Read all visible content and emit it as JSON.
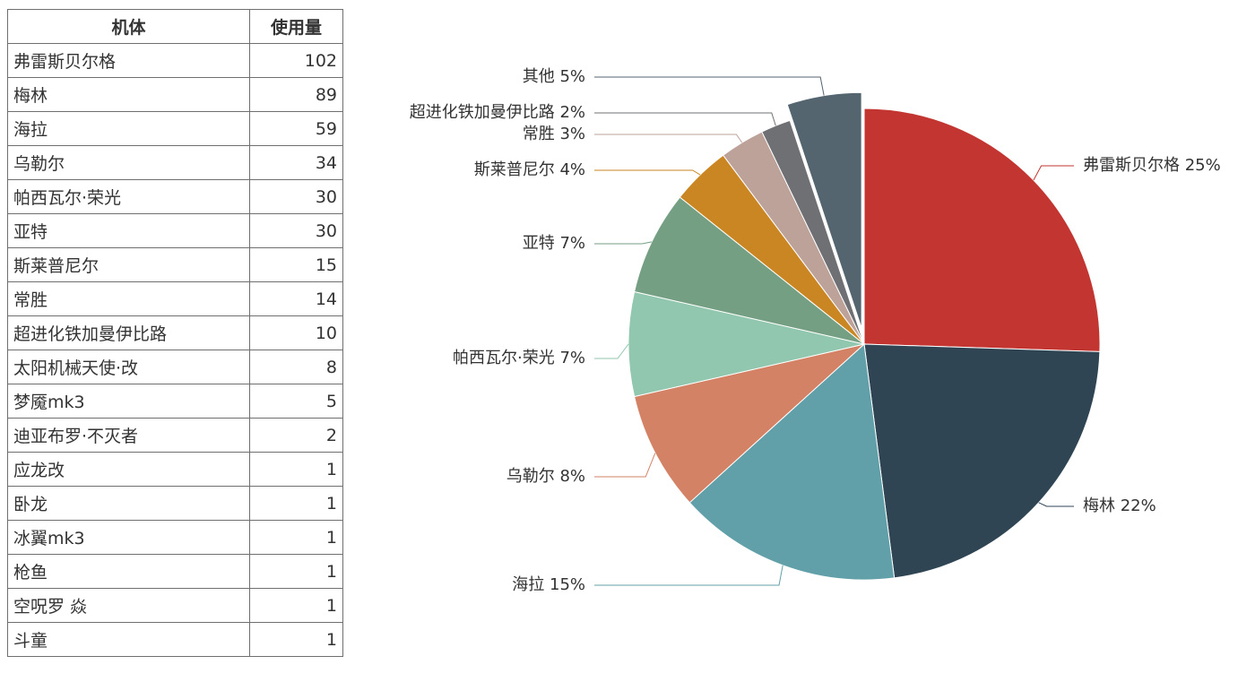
{
  "table": {
    "headers": [
      "机体",
      "使用量"
    ],
    "rows": [
      [
        "弗雷斯贝尔格",
        "102"
      ],
      [
        "梅林",
        "89"
      ],
      [
        "海拉",
        "59"
      ],
      [
        "乌勒尔",
        "34"
      ],
      [
        "帕西瓦尔·荣光",
        "30"
      ],
      [
        "亚特",
        "30"
      ],
      [
        "斯莱普尼尔",
        "15"
      ],
      [
        "常胜",
        "14"
      ],
      [
        "超进化铁加曼伊比路",
        "10"
      ],
      [
        "太阳机械天使·改",
        "8"
      ],
      [
        "梦魇mk3",
        "5"
      ],
      [
        "迪亚布罗·不灭者",
        "2"
      ],
      [
        "应龙改",
        "1"
      ],
      [
        "卧龙",
        "1"
      ],
      [
        "冰翼mk3",
        "1"
      ],
      [
        "枪鱼",
        "1"
      ],
      [
        "空呪罗 焱",
        "1"
      ],
      [
        "斗童",
        "1"
      ]
    ]
  },
  "chart_data": {
    "type": "pie",
    "slices": [
      {
        "label": "弗雷斯贝尔格 25%",
        "value": 25,
        "color": "#c23531"
      },
      {
        "label": "梅林 22%",
        "value": 22,
        "color": "#2f4554"
      },
      {
        "label": "海拉 15%",
        "value": 15,
        "color": "#61a0a8"
      },
      {
        "label": "乌勒尔 8%",
        "value": 8,
        "color": "#d48265"
      },
      {
        "label": "帕西瓦尔·荣光 7%",
        "value": 7,
        "color": "#91c7ae"
      },
      {
        "label": "亚特 7%",
        "value": 7,
        "color": "#749f83"
      },
      {
        "label": "斯莱普尼尔 4%",
        "value": 4,
        "color": "#ca8622"
      },
      {
        "label": "常胜 3%",
        "value": 3,
        "color": "#bda29a"
      },
      {
        "label": "超进化铁加曼伊比路 2%",
        "value": 2,
        "color": "#6e7074"
      },
      {
        "label": "其他 5%",
        "value": 5,
        "color": "#546570",
        "exploded": true
      }
    ]
  }
}
